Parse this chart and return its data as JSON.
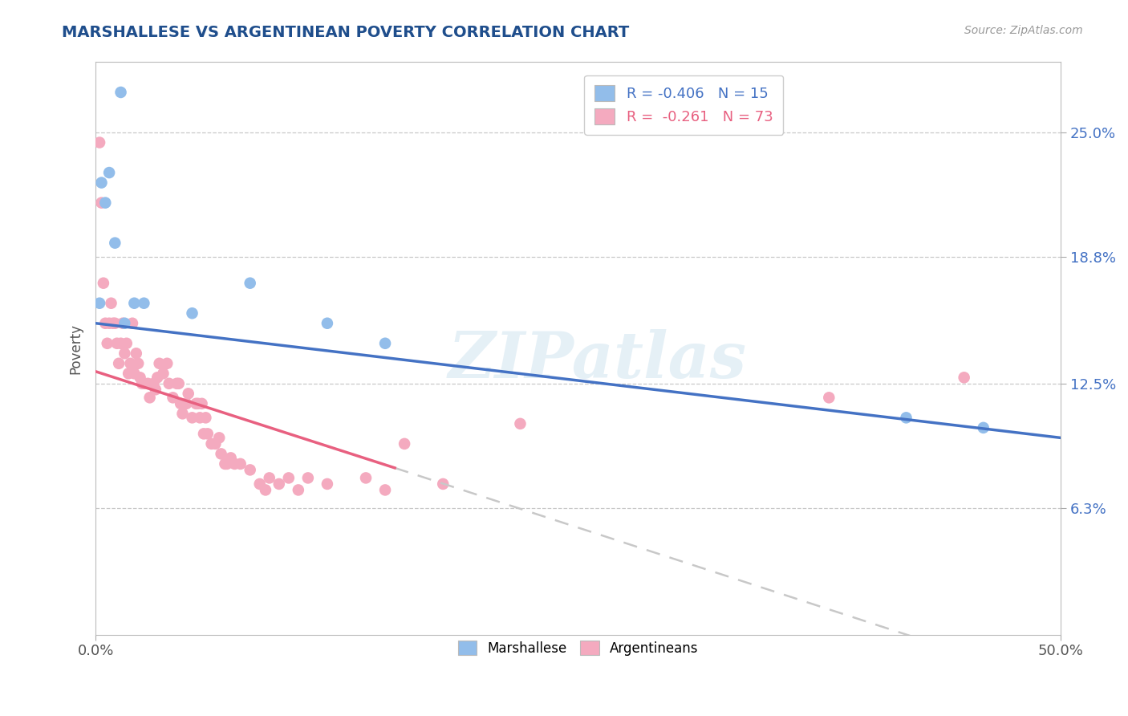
{
  "title": "MARSHALLESE VS ARGENTINEAN POVERTY CORRELATION CHART",
  "source": "Source: ZipAtlas.com",
  "ylabel": "Poverty",
  "y_tick_labels": [
    "25.0%",
    "18.8%",
    "12.5%",
    "6.3%"
  ],
  "y_tick_values": [
    0.25,
    0.188,
    0.125,
    0.063
  ],
  "xlim": [
    0.0,
    0.5
  ],
  "ylim": [
    0.0,
    0.285
  ],
  "watermark": "ZIPatlas",
  "legend_marshallese": "R = -0.406   N = 15",
  "legend_argentinean": "R =  -0.261   N = 73",
  "marshallese_color": "#92BDEA",
  "argentinean_color": "#F4AABF",
  "marshallese_line_color": "#4472C4",
  "argentinean_line_color": "#E86080",
  "argentinean_line_dashed_color": "#C8C8C8",
  "marshallese_line": [
    [
      0.0,
      0.155
    ],
    [
      0.5,
      0.098
    ]
  ],
  "argentinean_line_solid": [
    [
      0.0,
      0.131
    ],
    [
      0.155,
      0.083
    ]
  ],
  "argentinean_line_dashed": [
    [
      0.155,
      0.083
    ],
    [
      0.5,
      -0.025
    ]
  ],
  "marshallese_points": [
    [
      0.002,
      0.165
    ],
    [
      0.003,
      0.225
    ],
    [
      0.005,
      0.215
    ],
    [
      0.007,
      0.23
    ],
    [
      0.01,
      0.195
    ],
    [
      0.013,
      0.27
    ],
    [
      0.015,
      0.155
    ],
    [
      0.02,
      0.165
    ],
    [
      0.025,
      0.165
    ],
    [
      0.05,
      0.16
    ],
    [
      0.08,
      0.175
    ],
    [
      0.12,
      0.155
    ],
    [
      0.15,
      0.145
    ],
    [
      0.42,
      0.108
    ],
    [
      0.46,
      0.103
    ]
  ],
  "argentinean_points": [
    [
      0.002,
      0.245
    ],
    [
      0.003,
      0.215
    ],
    [
      0.004,
      0.175
    ],
    [
      0.005,
      0.155
    ],
    [
      0.006,
      0.145
    ],
    [
      0.007,
      0.155
    ],
    [
      0.008,
      0.165
    ],
    [
      0.009,
      0.155
    ],
    [
      0.01,
      0.155
    ],
    [
      0.011,
      0.145
    ],
    [
      0.012,
      0.135
    ],
    [
      0.013,
      0.145
    ],
    [
      0.014,
      0.155
    ],
    [
      0.015,
      0.14
    ],
    [
      0.016,
      0.145
    ],
    [
      0.017,
      0.13
    ],
    [
      0.018,
      0.135
    ],
    [
      0.019,
      0.155
    ],
    [
      0.02,
      0.13
    ],
    [
      0.021,
      0.14
    ],
    [
      0.022,
      0.135
    ],
    [
      0.023,
      0.128
    ],
    [
      0.024,
      0.125
    ],
    [
      0.025,
      0.125
    ],
    [
      0.027,
      0.125
    ],
    [
      0.028,
      0.118
    ],
    [
      0.03,
      0.125
    ],
    [
      0.031,
      0.122
    ],
    [
      0.032,
      0.128
    ],
    [
      0.033,
      0.135
    ],
    [
      0.035,
      0.13
    ],
    [
      0.037,
      0.135
    ],
    [
      0.038,
      0.125
    ],
    [
      0.04,
      0.118
    ],
    [
      0.042,
      0.125
    ],
    [
      0.043,
      0.125
    ],
    [
      0.044,
      0.115
    ],
    [
      0.045,
      0.11
    ],
    [
      0.047,
      0.115
    ],
    [
      0.048,
      0.12
    ],
    [
      0.05,
      0.108
    ],
    [
      0.052,
      0.115
    ],
    [
      0.053,
      0.115
    ],
    [
      0.054,
      0.108
    ],
    [
      0.055,
      0.115
    ],
    [
      0.056,
      0.1
    ],
    [
      0.057,
      0.108
    ],
    [
      0.058,
      0.1
    ],
    [
      0.06,
      0.095
    ],
    [
      0.062,
      0.095
    ],
    [
      0.064,
      0.098
    ],
    [
      0.065,
      0.09
    ],
    [
      0.067,
      0.085
    ],
    [
      0.068,
      0.085
    ],
    [
      0.07,
      0.088
    ],
    [
      0.072,
      0.085
    ],
    [
      0.075,
      0.085
    ],
    [
      0.08,
      0.082
    ],
    [
      0.085,
      0.075
    ],
    [
      0.088,
      0.072
    ],
    [
      0.09,
      0.078
    ],
    [
      0.095,
      0.075
    ],
    [
      0.1,
      0.078
    ],
    [
      0.105,
      0.072
    ],
    [
      0.11,
      0.078
    ],
    [
      0.12,
      0.075
    ],
    [
      0.14,
      0.078
    ],
    [
      0.15,
      0.072
    ],
    [
      0.16,
      0.095
    ],
    [
      0.18,
      0.075
    ],
    [
      0.22,
      0.105
    ],
    [
      0.38,
      0.118
    ],
    [
      0.45,
      0.128
    ]
  ]
}
